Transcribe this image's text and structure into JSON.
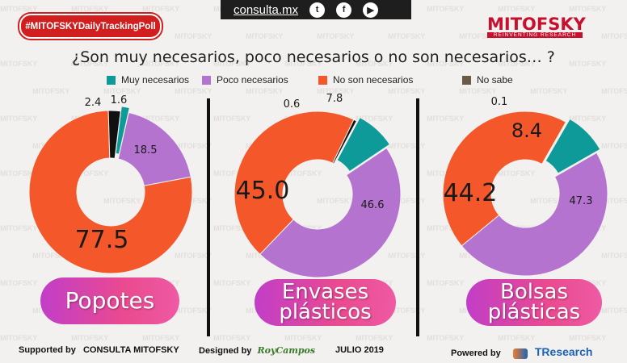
{
  "header": {
    "hashtag": "#MITOFSKYDailyTrackingPoll",
    "url": "consulta.mx",
    "social_icons": [
      "twitter-icon",
      "facebook-icon",
      "youtube-icon"
    ],
    "logo_name": "MITOFSKY",
    "logo_tagline": "REINVENTING RESEARCH"
  },
  "question": "¿Son muy necesarios, poco necesarios o no son necesarios… ?",
  "legend": [
    {
      "label": "Muy necesarios",
      "color": "#0e9a98"
    },
    {
      "label": "Poco necesarios",
      "color": "#b373cf"
    },
    {
      "label": "No son necesarios",
      "color": "#f4572a"
    },
    {
      "label": "No sabe",
      "color": "#6b5a45"
    }
  ],
  "chart_data": [
    {
      "type": "pie",
      "title": "Popotes",
      "categories": [
        "Muy necesarios",
        "Poco necesarios",
        "No son necesarios",
        "No sabe"
      ],
      "values": [
        1.6,
        18.5,
        77.5,
        2.4
      ],
      "labels": [
        "1.6",
        "18.5",
        "77.5",
        "2.4"
      ]
    },
    {
      "type": "pie",
      "title": "Envases plásticos",
      "categories": [
        "Muy necesarios",
        "Poco necesarios",
        "No son necesarios",
        "No sabe"
      ],
      "values": [
        7.8,
        46.6,
        45.0,
        0.6
      ],
      "labels": [
        "7.8",
        "46.6",
        "45.0",
        "0.6"
      ]
    },
    {
      "type": "pie",
      "title": "Bolsas plásticas",
      "categories": [
        "Muy necesarios",
        "Poco necesarios",
        "No son necesarios",
        "No sabe"
      ],
      "values": [
        8.4,
        47.3,
        44.2,
        0.1
      ],
      "labels": [
        "8.4",
        "47.3",
        "44.2",
        "0.1"
      ]
    }
  ],
  "pills": [
    "Popotes",
    "Envases plásticos",
    "Bolsas plásticas"
  ],
  "pill_lines": [
    [
      "Popotes"
    ],
    [
      "Envases",
      "plásticos"
    ],
    [
      "Bolsas",
      "plásticas"
    ]
  ],
  "footer": {
    "supported": "Supported by",
    "supported_org": "CONSULTA MITOFSKY",
    "designed": "Designed by",
    "designer": "RoyCampos",
    "date": "JULIO 2019",
    "powered": "Powered by",
    "powered_org": "TResearch"
  }
}
